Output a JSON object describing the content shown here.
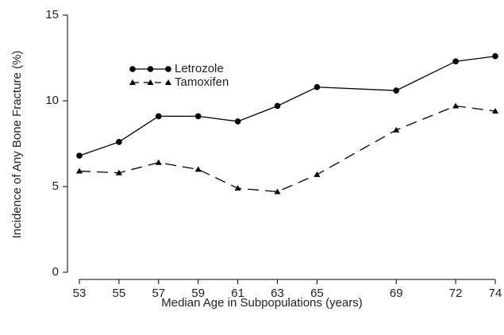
{
  "chart_data": {
    "type": "line",
    "xlabel": "Median Age in Subpopulations (years)",
    "ylabel": "Incidence of Any Bone Fracture (%)",
    "x": [
      53,
      55,
      57,
      59,
      61,
      63,
      65,
      69,
      72,
      74
    ],
    "series": [
      {
        "name": "Letrozole",
        "color": "#000000",
        "marker": "circle",
        "line_style": "solid",
        "values": [
          6.8,
          7.6,
          9.1,
          9.1,
          8.8,
          9.7,
          10.8,
          10.6,
          12.3,
          12.6
        ]
      },
      {
        "name": "Tamoxifen",
        "color": "#000000",
        "marker": "triangle",
        "line_style": "dashed",
        "values": [
          5.9,
          5.8,
          6.4,
          6.0,
          4.9,
          4.7,
          5.7,
          8.3,
          9.7,
          9.4
        ]
      }
    ],
    "xlim": [
      53,
      74
    ],
    "xticks": [
      53,
      55,
      57,
      59,
      61,
      63,
      65,
      69,
      72,
      74
    ],
    "ylim": [
      0,
      15
    ],
    "yticks": [
      0,
      5,
      10,
      15
    ],
    "grid": false,
    "legend_position": "upper-left"
  }
}
